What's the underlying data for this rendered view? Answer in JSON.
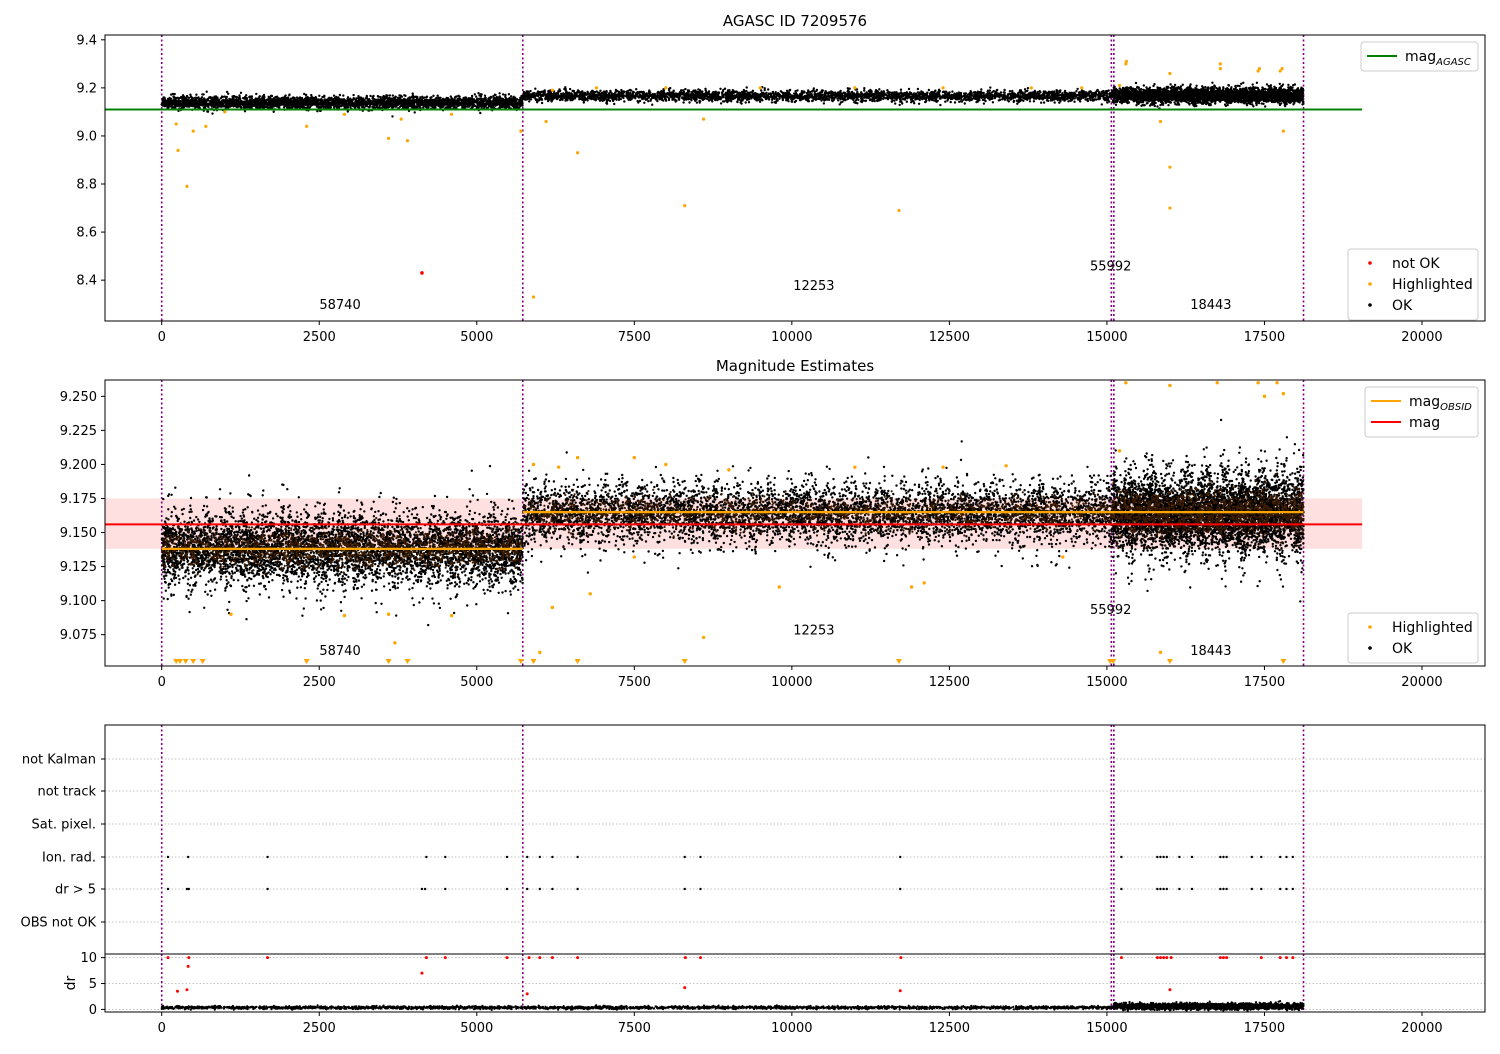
{
  "figure": {
    "width": 1500,
    "height": 1050
  },
  "chart_data": [
    {
      "type": "scatter",
      "panel": "top",
      "title": "AGASC ID 7209576",
      "xlim": [
        -900,
        21000
      ],
      "ylim": [
        8.23,
        9.42
      ],
      "xticks": [
        0,
        2500,
        5000,
        7500,
        10000,
        12500,
        15000,
        17500,
        20000
      ],
      "yticks": [
        8.4,
        8.6,
        8.8,
        9.0,
        9.2,
        9.4
      ],
      "ytick_labels": [
        "8.4",
        "8.6",
        "8.8",
        "9.0",
        "9.2",
        "9.4"
      ],
      "vlines": [
        0,
        5730,
        15070,
        15110,
        18120
      ],
      "obsid_labels": [
        {
          "x": 2830,
          "y": 8.28,
          "text": "58740"
        },
        {
          "x": 10350,
          "y": 8.36,
          "text": "12253"
        },
        {
          "x": 15060,
          "y": 8.44,
          "text": "55992"
        },
        {
          "x": 16650,
          "y": 8.28,
          "text": "18443"
        }
      ],
      "mag_agasc": 9.11,
      "mag_agasc_range": [
        -900,
        19050
      ],
      "ok_segments": [
        {
          "x0": 0,
          "x1": 5730,
          "center": 9.138,
          "spread": 0.028
        },
        {
          "x0": 5730,
          "x1": 15100,
          "center": 9.166,
          "spread": 0.025
        },
        {
          "x0": 15100,
          "x1": 18120,
          "center": 9.168,
          "spread": 0.035
        }
      ],
      "highlighted_points": [
        [
          230,
          9.05
        ],
        [
          260,
          8.94
        ],
        [
          400,
          8.79
        ],
        [
          500,
          9.02
        ],
        [
          700,
          9.04
        ],
        [
          1000,
          9.1
        ],
        [
          2300,
          9.04
        ],
        [
          2900,
          9.09
        ],
        [
          3600,
          8.99
        ],
        [
          3800,
          9.07
        ],
        [
          3900,
          8.98
        ],
        [
          4600,
          9.09
        ],
        [
          5700,
          9.02
        ],
        [
          5900,
          8.33
        ],
        [
          6100,
          9.06
        ],
        [
          6600,
          8.93
        ],
        [
          8300,
          8.71
        ],
        [
          8600,
          9.07
        ],
        [
          11700,
          8.69
        ],
        [
          15300,
          9.3
        ],
        [
          15310,
          9.31
        ],
        [
          15850,
          9.06
        ],
        [
          16000,
          9.26
        ],
        [
          16000,
          8.87
        ],
        [
          16000,
          8.7
        ],
        [
          16800,
          9.28
        ],
        [
          16800,
          9.3
        ],
        [
          17400,
          9.27
        ],
        [
          17420,
          9.28
        ],
        [
          17750,
          9.27
        ],
        [
          17780,
          9.28
        ],
        [
          17800,
          9.02
        ],
        [
          6200,
          9.19
        ],
        [
          6900,
          9.2
        ],
        [
          8000,
          9.2
        ],
        [
          9500,
          9.2
        ],
        [
          11000,
          9.2
        ],
        [
          12400,
          9.2
        ],
        [
          13800,
          9.2
        ],
        [
          14600,
          9.2
        ],
        [
          15200,
          9.21
        ]
      ],
      "not_ok_points": [
        [
          4130,
          8.43
        ]
      ],
      "legend_top": [
        {
          "label": "mag",
          "sub": "AGASC",
          "color": "#008000"
        }
      ],
      "legend_bottom": [
        {
          "label": "not OK",
          "color": "#ff0000"
        },
        {
          "label": "Highlighted",
          "color": "#ffa500"
        },
        {
          "label": "OK",
          "color": "#000000"
        }
      ]
    },
    {
      "type": "scatter",
      "panel": "middle",
      "title": "Magnitude Estimates",
      "xlim": [
        -900,
        21000
      ],
      "ylim": [
        9.052,
        9.262
      ],
      "xticks": [
        0,
        2500,
        5000,
        7500,
        10000,
        12500,
        15000,
        17500,
        20000
      ],
      "yticks": [
        9.075,
        9.1,
        9.125,
        9.15,
        9.175,
        9.2,
        9.225,
        9.25
      ],
      "ytick_labels": [
        "9.075",
        "9.100",
        "9.125",
        "9.150",
        "9.175",
        "9.200",
        "9.225",
        "9.250"
      ],
      "vlines": [
        0,
        5730,
        15070,
        15110,
        18120
      ],
      "obsid_labels": [
        {
          "x": 2830,
          "y": 9.06,
          "text": "58740"
        },
        {
          "x": 10350,
          "y": 9.075,
          "text": "12253"
        },
        {
          "x": 15060,
          "y": 9.09,
          "text": "55992"
        },
        {
          "x": 16650,
          "y": 9.06,
          "text": "18443"
        }
      ],
      "mag": 9.156,
      "mag_band": [
        9.138,
        9.175
      ],
      "mag_range": [
        -900,
        19050
      ],
      "mag_obsid": [
        {
          "x0": 0,
          "x1": 5730,
          "y": 9.138
        },
        {
          "x0": 5730,
          "x1": 18120,
          "y": 9.165
        }
      ],
      "ok_segments": [
        {
          "x0": 0,
          "x1": 5730,
          "center": 9.138,
          "spread": 0.035
        },
        {
          "x0": 5730,
          "x1": 15100,
          "center": 9.164,
          "spread": 0.03
        },
        {
          "x0": 15100,
          "x1": 18120,
          "center": 9.164,
          "spread": 0.038
        }
      ],
      "highlighted_points": [
        [
          1100,
          9.09
        ],
        [
          2900,
          9.089
        ],
        [
          3600,
          9.09
        ],
        [
          3700,
          9.069
        ],
        [
          4600,
          9.089
        ],
        [
          6000,
          9.062
        ],
        [
          6200,
          9.095
        ],
        [
          6800,
          9.105
        ],
        [
          7500,
          9.132
        ],
        [
          8600,
          9.073
        ],
        [
          9800,
          9.11
        ],
        [
          11900,
          9.11
        ],
        [
          12100,
          9.113
        ],
        [
          14300,
          9.132
        ],
        [
          15850,
          9.062
        ],
        [
          16000,
          9.258
        ],
        [
          17500,
          9.25
        ],
        [
          17800,
          9.252
        ],
        [
          5900,
          9.2
        ],
        [
          6300,
          9.198
        ],
        [
          6600,
          9.205
        ],
        [
          7500,
          9.205
        ],
        [
          8000,
          9.2
        ],
        [
          9000,
          9.196
        ],
        [
          11000,
          9.198
        ],
        [
          12400,
          9.198
        ],
        [
          13400,
          9.199
        ],
        [
          15200,
          9.21
        ],
        [
          15300,
          9.26
        ],
        [
          16750,
          9.26
        ],
        [
          17400,
          9.26
        ],
        [
          17700,
          9.26
        ]
      ],
      "offscale_low": [
        230,
        290,
        380,
        500,
        650,
        2300,
        3600,
        3900,
        5700,
        5900,
        6600,
        8300,
        11700,
        15050,
        15100,
        16000,
        17800
      ],
      "legend_top": [
        {
          "label": "mag",
          "sub": "OBSID",
          "color": "#ffa500"
        },
        {
          "label": "mag",
          "sub": "",
          "color": "#ff0000"
        }
      ],
      "legend_bottom": [
        {
          "label": "Highlighted",
          "color": "#ffa500"
        },
        {
          "label": "OK",
          "color": "#000000"
        }
      ]
    },
    {
      "type": "scatter",
      "panel": "flags",
      "xlim": [
        -900,
        21000
      ],
      "categories": [
        "not Kalman",
        "not track",
        "Sat. pixel.",
        "Ion. rad.",
        "dr > 5",
        "OBS not OK"
      ],
      "vlines": [
        0,
        5730,
        15070,
        15110,
        18120
      ],
      "ion_rad_x": [
        100,
        420,
        1680,
        4200,
        4500,
        5480,
        5800,
        6000,
        6200,
        6600,
        8300,
        8550,
        11720,
        15230,
        15800,
        15850,
        15900,
        15950,
        16150,
        16350,
        16800,
        16850,
        16900,
        17300,
        17450,
        17750,
        17850,
        17950
      ],
      "dr5_x": [
        100,
        400,
        430,
        1680,
        4130,
        4180,
        4500,
        5480,
        5800,
        6000,
        6200,
        6600,
        8300,
        8550,
        11720,
        15230,
        15800,
        15850,
        15900,
        15950,
        16150,
        16350,
        16800,
        16850,
        16900,
        17300,
        17450,
        17750,
        17850,
        17950
      ]
    },
    {
      "type": "scatter",
      "panel": "dr",
      "ylabel": "dr",
      "xlim": [
        -900,
        21000
      ],
      "ylim": [
        -0.5,
        10.7
      ],
      "xticks": [
        0,
        2500,
        5000,
        7500,
        10000,
        12500,
        15000,
        17500,
        20000
      ],
      "yticks": [
        0,
        5,
        10
      ],
      "ytick_labels": [
        "0",
        "5",
        "10"
      ],
      "vlines": [
        0,
        5730,
        15070,
        15110,
        18120
      ],
      "red_points": [
        [
          100,
          10
        ],
        [
          250,
          3.5
        ],
        [
          400,
          3.8
        ],
        [
          420,
          8.3
        ],
        [
          430,
          10
        ],
        [
          1680,
          10
        ],
        [
          4130,
          7
        ],
        [
          4200,
          10
        ],
        [
          4500,
          10
        ],
        [
          5480,
          10
        ],
        [
          5800,
          3
        ],
        [
          5830,
          10
        ],
        [
          6000,
          10
        ],
        [
          6200,
          10
        ],
        [
          6600,
          10
        ],
        [
          8300,
          4.2
        ],
        [
          8310,
          10
        ],
        [
          8550,
          10
        ],
        [
          11720,
          3.6
        ],
        [
          11730,
          10
        ],
        [
          15230,
          10
        ],
        [
          15800,
          10
        ],
        [
          15850,
          10
        ],
        [
          15900,
          10
        ],
        [
          15950,
          10
        ],
        [
          16000,
          3.8
        ],
        [
          16020,
          10
        ],
        [
          16800,
          10
        ],
        [
          16850,
          10
        ],
        [
          16900,
          10
        ],
        [
          17450,
          10
        ],
        [
          17750,
          10
        ],
        [
          17850,
          10
        ],
        [
          17950,
          10
        ]
      ],
      "black_segments": [
        {
          "x0": 0,
          "x1": 15100,
          "center": 0.35,
          "spread": 0.3
        },
        {
          "x0": 15100,
          "x1": 18120,
          "center": 0.6,
          "spread": 0.6
        }
      ]
    }
  ]
}
